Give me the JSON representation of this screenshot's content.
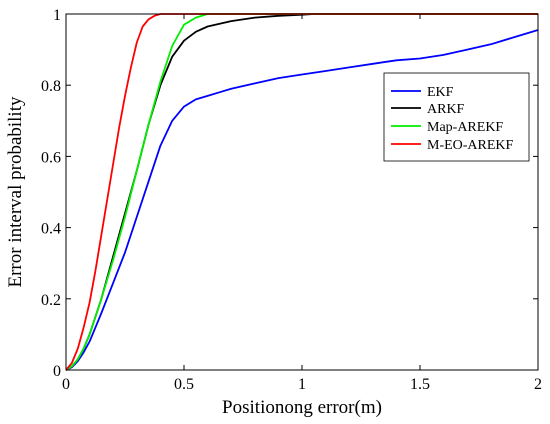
{
  "chart_data": {
    "type": "line",
    "title": "",
    "xlabel": "Positionong error(m)",
    "ylabel": "Error interval probability",
    "xlim": [
      0,
      2
    ],
    "ylim": [
      0,
      1
    ],
    "x_ticks": [
      0,
      0.5,
      1,
      1.5,
      2
    ],
    "x_tick_labels": [
      "0",
      "0.5",
      "1",
      "1.5",
      "2"
    ],
    "y_ticks": [
      0,
      0.2,
      0.4,
      0.6,
      0.8,
      1
    ],
    "y_tick_labels": [
      "0",
      "0.2",
      "0.4",
      "0.6",
      "0.8",
      "1"
    ],
    "grid": false,
    "legend_position": "right",
    "series": [
      {
        "name": "EKF",
        "color": "#0000ff",
        "x": [
          0,
          0.025,
          0.05,
          0.075,
          0.1,
          0.125,
          0.15,
          0.2,
          0.25,
          0.3,
          0.35,
          0.4,
          0.45,
          0.5,
          0.55,
          0.6,
          0.65,
          0.7,
          0.8,
          0.9,
          1.0,
          1.1,
          1.2,
          1.3,
          1.4,
          1.5,
          1.6,
          1.7,
          1.8,
          1.9,
          2.0
        ],
        "y": [
          0,
          0.008,
          0.025,
          0.05,
          0.08,
          0.12,
          0.16,
          0.245,
          0.33,
          0.43,
          0.53,
          0.63,
          0.7,
          0.74,
          0.76,
          0.77,
          0.78,
          0.79,
          0.805,
          0.82,
          0.83,
          0.84,
          0.85,
          0.86,
          0.87,
          0.875,
          0.885,
          0.9,
          0.915,
          0.935,
          0.955
        ]
      },
      {
        "name": "ARKF",
        "color": "#000000",
        "x": [
          0,
          0.025,
          0.05,
          0.075,
          0.1,
          0.125,
          0.15,
          0.2,
          0.25,
          0.3,
          0.35,
          0.4,
          0.45,
          0.5,
          0.55,
          0.6,
          0.7,
          0.8,
          0.9,
          1.0,
          1.05,
          1.5,
          2.0
        ],
        "y": [
          0,
          0.01,
          0.03,
          0.06,
          0.1,
          0.15,
          0.2,
          0.32,
          0.44,
          0.56,
          0.69,
          0.8,
          0.88,
          0.925,
          0.95,
          0.965,
          0.98,
          0.99,
          0.995,
          0.998,
          1.0,
          1.0,
          1.0
        ]
      },
      {
        "name": "Map-AREKF",
        "color": "#00ee00",
        "x": [
          0,
          0.025,
          0.05,
          0.075,
          0.1,
          0.125,
          0.15,
          0.2,
          0.25,
          0.3,
          0.35,
          0.4,
          0.45,
          0.5,
          0.55,
          0.6,
          0.65,
          2.0
        ],
        "y": [
          0,
          0.01,
          0.03,
          0.06,
          0.1,
          0.15,
          0.2,
          0.31,
          0.43,
          0.56,
          0.69,
          0.81,
          0.91,
          0.97,
          0.99,
          1.0,
          1.0,
          1.0
        ]
      },
      {
        "name": "M-EO-AREKF",
        "color": "#ff0000",
        "x": [
          0,
          0.025,
          0.05,
          0.075,
          0.1,
          0.125,
          0.15,
          0.175,
          0.2,
          0.225,
          0.25,
          0.275,
          0.3,
          0.325,
          0.35,
          0.375,
          0.4,
          0.45,
          2.0
        ],
        "y": [
          0,
          0.02,
          0.06,
          0.12,
          0.19,
          0.28,
          0.38,
          0.48,
          0.58,
          0.68,
          0.77,
          0.85,
          0.92,
          0.965,
          0.985,
          0.995,
          1.0,
          1.0,
          1.0
        ]
      }
    ]
  }
}
